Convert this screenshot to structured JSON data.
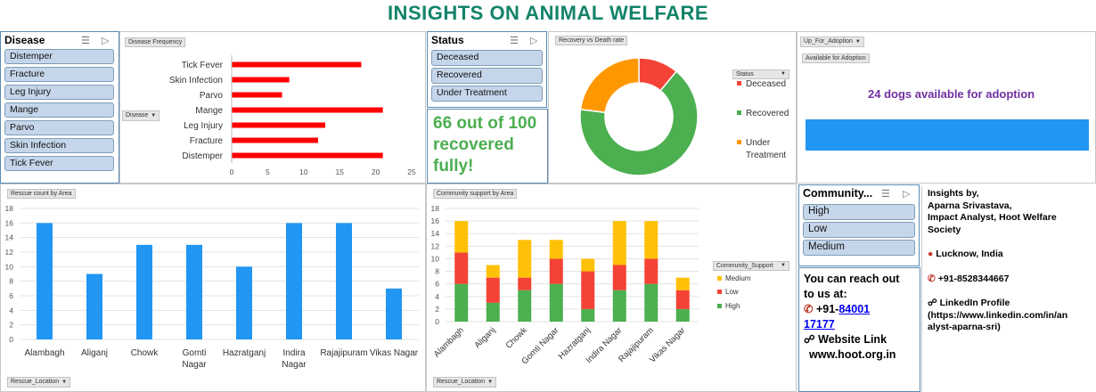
{
  "title": "INSIGHTS ON ANIMAL WELFARE",
  "disease_slicer": {
    "header": "Disease",
    "items": [
      "Distemper",
      "Fracture",
      "Leg Injury",
      "Mange",
      "Parvo",
      "Skin Infection",
      "Tick Fever"
    ]
  },
  "status_slicer": {
    "header": "Status",
    "items": [
      "Deceased",
      "Recovered",
      "Under Treatment"
    ]
  },
  "community_slicer": {
    "header": "Community...",
    "items": [
      "High",
      "Low",
      "Medium"
    ]
  },
  "disease_chart": {
    "field_button": "Disease Frequency",
    "axis_button": "Disease"
  },
  "recovery_chart": {
    "field_button": "Recovery vs Death rate",
    "legend_button": "Status"
  },
  "recovered_text": "66 out of 100 recovered fully!",
  "adoption": {
    "filter_button": "Up_For_Adoption",
    "field_button": "Available for Adoption",
    "text": "24 dogs available for adoption",
    "bar_color": "#2196f3",
    "value": 24
  },
  "rescue_chart": {
    "field_button": "Rescue count by Area",
    "axis_button": "Rescue_Location"
  },
  "community_chart": {
    "field_button": "Community support by Area",
    "axis_button": "Rescue_Location",
    "legend_button": "Community_Support"
  },
  "contact": {
    "line1": "You can reach out",
    "line2": "to us at:",
    "phone_prefix": "+91-",
    "phone_link1": "84001",
    "phone_link2": "17177",
    "website_label": "Website Link",
    "website": "www.hoot.org.in"
  },
  "insights": {
    "line1": "Insights by,",
    "line2": "Aparna Srivastava,",
    "line3": "Impact Analyst, Hoot Welfare",
    "line4": "Society",
    "location": "Lucknow, India",
    "phone": "+91-8528344667",
    "linkedin_label": "LinkedIn Profile",
    "linkedin_url1": "(https://www.linkedin.com/in/an",
    "linkedin_url2": "alyst-aparna-sri)"
  },
  "chart_data": [
    {
      "type": "bar",
      "orientation": "horizontal",
      "categories": [
        "Tick Fever",
        "Skin Infection",
        "Parvo",
        "Mange",
        "Leg Injury",
        "Fracture",
        "Distemper"
      ],
      "values": [
        18,
        8,
        7,
        21,
        13,
        12,
        21
      ],
      "xlim": [
        0,
        25
      ],
      "xticks": [
        0,
        5,
        10,
        15,
        20,
        25
      ],
      "color": "#ff0000"
    },
    {
      "type": "pie",
      "donut": true,
      "categories": [
        "Deceased",
        "Recovered",
        "Under Treatment"
      ],
      "values": [
        11,
        66,
        23
      ],
      "colors": [
        "#f44336",
        "#4caf50",
        "#ff9800"
      ],
      "legend_position": "right"
    },
    {
      "type": "bar",
      "categories": [
        "Alambagh",
        "Aliganj",
        "Chowk",
        "Gomti Nagar",
        "Hazratganj",
        "Indira Nagar",
        "Rajajipuram",
        "Vikas Nagar"
      ],
      "values": [
        16,
        9,
        13,
        13,
        10,
        16,
        16,
        7
      ],
      "ylim": [
        0,
        18
      ],
      "yticks": [
        0,
        2,
        4,
        6,
        8,
        10,
        12,
        14,
        16,
        18
      ],
      "color": "#2196f3",
      "grid": true
    },
    {
      "type": "bar",
      "stacked": true,
      "categories": [
        "Alambagh",
        "Aliganj",
        "Chowk",
        "Gomti Nagar",
        "Hazratganj",
        "Indira Nagar",
        "Rajajipuram",
        "Vikas Nagar"
      ],
      "series": [
        {
          "name": "High",
          "values": [
            6,
            3,
            5,
            6,
            2,
            5,
            6,
            2
          ],
          "color": "#4caf50"
        },
        {
          "name": "Low",
          "values": [
            5,
            4,
            2,
            4,
            6,
            4,
            4,
            3
          ],
          "color": "#f44336"
        },
        {
          "name": "Medium",
          "values": [
            5,
            2,
            6,
            3,
            2,
            7,
            6,
            2
          ],
          "color": "#ffc107"
        }
      ],
      "legend_order": [
        "Medium",
        "Low",
        "High"
      ],
      "ylim": [
        0,
        18
      ],
      "yticks": [
        0,
        2,
        4,
        6,
        8,
        10,
        12,
        14,
        16,
        18
      ],
      "grid": true,
      "legend_position": "right"
    }
  ]
}
